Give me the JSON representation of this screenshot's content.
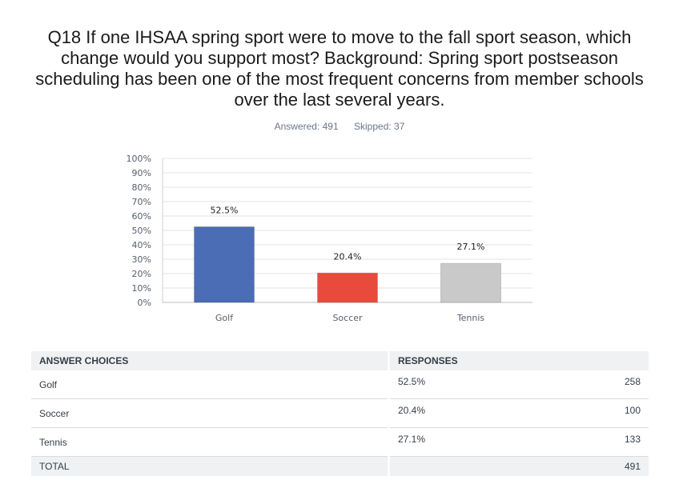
{
  "question": {
    "title": "Q18 If one IHSAA spring sport were to move to the fall sport season, which change would you support most? Background: Spring sport postseason scheduling has been one of the most frequent concerns from member schools over the last several years."
  },
  "stats": {
    "answered": "Answered: 491",
    "skipped": "Skipped: 37"
  },
  "chart_data": {
    "type": "bar",
    "categories": [
      "Golf",
      "Soccer",
      "Tennis"
    ],
    "values": [
      52.5,
      20.4,
      27.1
    ],
    "value_labels": [
      "52.5%",
      "20.4%",
      "27.1%"
    ],
    "colors": [
      "#4a6db5",
      "#e84b3c",
      "#c9c9c9"
    ],
    "ylim": [
      0,
      100
    ],
    "yticks": [
      "0%",
      "10%",
      "20%",
      "30%",
      "40%",
      "50%",
      "60%",
      "70%",
      "80%",
      "90%",
      "100%"
    ],
    "grid": true
  },
  "table": {
    "headers": [
      "ANSWER CHOICES",
      "RESPONSES"
    ],
    "rows": [
      {
        "choice": "Golf",
        "percent": "52.5%",
        "count": "258"
      },
      {
        "choice": "Soccer",
        "percent": "20.4%",
        "count": "100"
      },
      {
        "choice": "Tennis",
        "percent": "27.1%",
        "count": "133"
      }
    ],
    "total_label": "TOTAL",
    "total_count": "491"
  }
}
